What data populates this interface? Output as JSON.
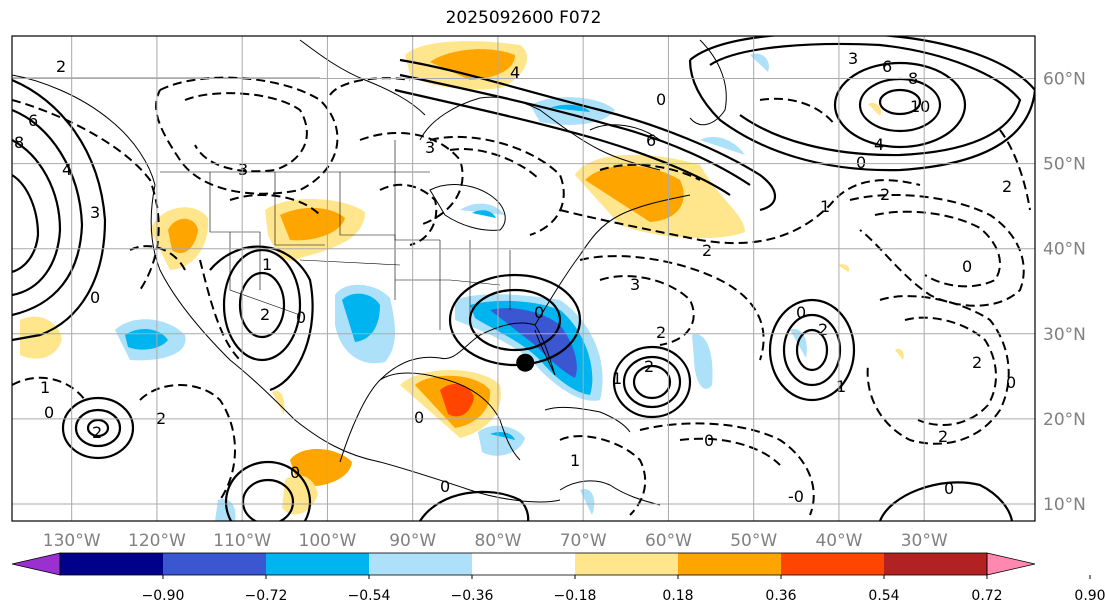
{
  "title": "2025092600 F072",
  "map": {
    "lon_range": [
      -137,
      -17
    ],
    "lat_range": [
      8,
      65
    ],
    "lon_ticks": [
      {
        "label": "130°W",
        "value": -130
      },
      {
        "label": "120°W",
        "value": -120
      },
      {
        "label": "110°W",
        "value": -110
      },
      {
        "label": "100°W",
        "value": -100
      },
      {
        "label": "90°W",
        "value": -90
      },
      {
        "label": "80°W",
        "value": -80
      },
      {
        "label": "70°W",
        "value": -70
      },
      {
        "label": "60°W",
        "value": -60
      },
      {
        "label": "50°W",
        "value": -50
      },
      {
        "label": "40°W",
        "value": -40
      },
      {
        "label": "30°W",
        "value": -30
      }
    ],
    "lat_ticks": [
      {
        "label": "60°N",
        "value": 60
      },
      {
        "label": "50°N",
        "value": 50
      },
      {
        "label": "40°N",
        "value": 40
      },
      {
        "label": "30°N",
        "value": 30
      },
      {
        "label": "20°N",
        "value": 20
      },
      {
        "label": "10°N",
        "value": 10
      }
    ],
    "storm_marker": {
      "lon": -76.8,
      "lat": 26.6
    },
    "contour_labels": [
      "2",
      "6",
      "8",
      "4",
      "3",
      "0",
      "1",
      "10",
      "-0"
    ],
    "shaded_colors": {
      "lt_-0.90": "#9b30d0",
      "-0.90_-0.72": "#00008b",
      "-0.72_-0.54": "#3a56d0",
      "-0.54_-0.36": "#00b4f0",
      "-0.36_-0.18": "#ade1fa",
      "-0.18_0.18": "#ffffff",
      "0.18_0.36": "#ffe68c",
      "0.36_0.54": "#ffa500",
      "0.54_0.72": "#ff4500",
      "0.72_0.90": "#b22222",
      "gt_0.90": "#ff88b0"
    }
  },
  "colorbar": {
    "labels": [
      "−0.90",
      "−0.72",
      "−0.54",
      "−0.36",
      "−0.18",
      "0.18",
      "0.36",
      "0.54",
      "0.72",
      "0.90"
    ],
    "colors": [
      "#9b30d0",
      "#00008b",
      "#3a56d0",
      "#00b4f0",
      "#ade1fa",
      "#ffffff",
      "#ffe68c",
      "#ffa500",
      "#ff4500",
      "#b22222",
      "#ff88b0"
    ]
  }
}
